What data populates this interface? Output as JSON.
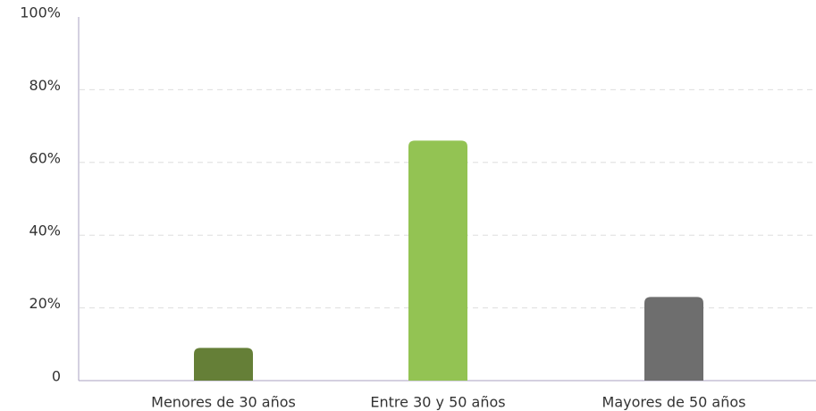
{
  "chart_data": {
    "type": "bar",
    "categories": [
      "Menores de 30 años",
      "Entre 30 y 50 años",
      "Mayores de 50 años"
    ],
    "values": [
      9,
      66,
      23
    ],
    "colors": [
      "#657f37",
      "#93c353",
      "#6e6e6e"
    ],
    "ylim": [
      0,
      100
    ],
    "yticks": [
      0,
      {
        "value": 20,
        "label": "20%"
      },
      {
        "value": 40,
        "label": "40%"
      },
      {
        "value": 60,
        "label": "60%"
      },
      {
        "value": 80,
        "label": "80%"
      },
      {
        "value": 100,
        "label": "100%"
      }
    ],
    "grid": true
  }
}
